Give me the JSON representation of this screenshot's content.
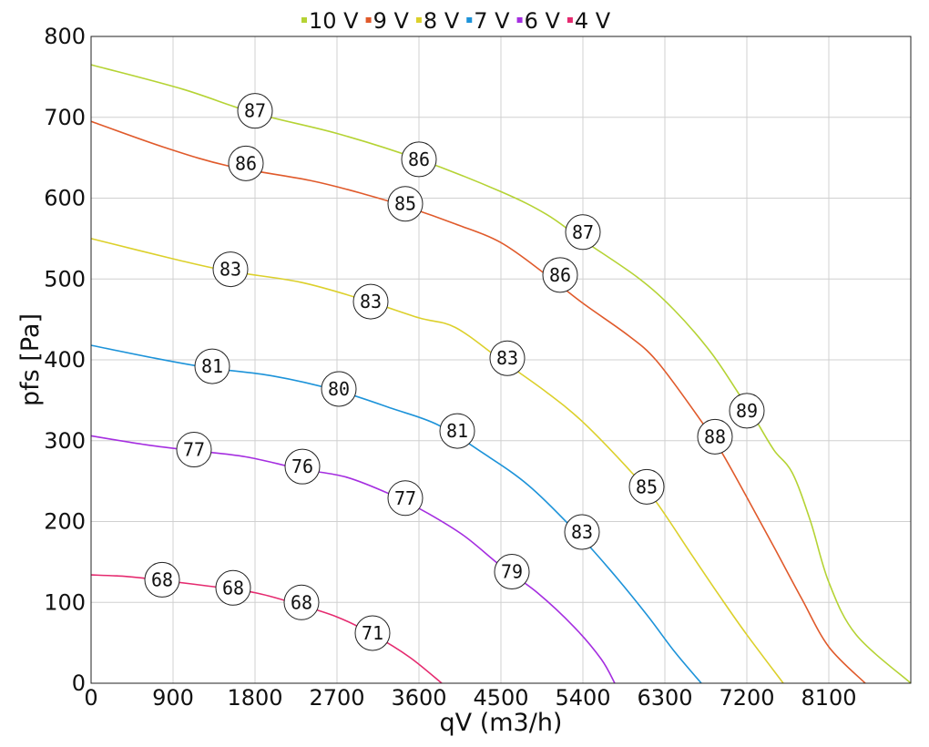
{
  "chart_data": {
    "type": "line",
    "xlabel": "qV (m3/h)",
    "ylabel": "pfs [Pa]",
    "xlim": [
      0,
      9000
    ],
    "ylim": [
      0,
      800
    ],
    "xticks": [
      0,
      900,
      1800,
      2700,
      3600,
      4500,
      5400,
      6300,
      7200,
      8100
    ],
    "yticks": [
      0,
      100,
      200,
      300,
      400,
      500,
      600,
      700,
      800
    ],
    "grid": true,
    "legend_position": "top-center",
    "series": [
      {
        "name": "10 V",
        "color": "#b5d334",
        "points": [
          [
            0,
            765
          ],
          [
            1000,
            735
          ],
          [
            1800,
            705
          ],
          [
            2700,
            680
          ],
          [
            3600,
            648
          ],
          [
            4500,
            608
          ],
          [
            5000,
            580
          ],
          [
            5400,
            548
          ],
          [
            6000,
            502
          ],
          [
            6400,
            462
          ],
          [
            6800,
            410
          ],
          [
            7100,
            360
          ],
          [
            7300,
            325
          ],
          [
            7500,
            288
          ],
          [
            7700,
            260
          ],
          [
            7900,
            200
          ],
          [
            8100,
            125
          ],
          [
            8400,
            60
          ],
          [
            9000,
            0
          ]
        ]
      },
      {
        "name": "9 V",
        "color": "#e05a2b",
        "points": [
          [
            0,
            695
          ],
          [
            800,
            663
          ],
          [
            1500,
            640
          ],
          [
            2400,
            622
          ],
          [
            3000,
            605
          ],
          [
            3500,
            588
          ],
          [
            4000,
            568
          ],
          [
            4500,
            545
          ],
          [
            5000,
            505
          ],
          [
            5400,
            470
          ],
          [
            5900,
            430
          ],
          [
            6200,
            400
          ],
          [
            6600,
            340
          ],
          [
            6900,
            290
          ],
          [
            7200,
            230
          ],
          [
            7500,
            168
          ],
          [
            7800,
            105
          ],
          [
            8100,
            45
          ],
          [
            8500,
            0
          ]
        ]
      },
      {
        "name": "8 V",
        "color": "#dcd02b",
        "points": [
          [
            0,
            550
          ],
          [
            900,
            525
          ],
          [
            1500,
            510
          ],
          [
            2300,
            496
          ],
          [
            3000,
            474
          ],
          [
            3600,
            452
          ],
          [
            4000,
            440
          ],
          [
            4500,
            400
          ],
          [
            5000,
            360
          ],
          [
            5400,
            323
          ],
          [
            5900,
            265
          ],
          [
            6200,
            225
          ],
          [
            6600,
            158
          ],
          [
            6900,
            108
          ],
          [
            7200,
            60
          ],
          [
            7600,
            0
          ]
        ]
      },
      {
        "name": "7 V",
        "color": "#1d93d9",
        "points": [
          [
            0,
            418
          ],
          [
            700,
            402
          ],
          [
            1300,
            390
          ],
          [
            2000,
            380
          ],
          [
            2700,
            362
          ],
          [
            3300,
            340
          ],
          [
            3800,
            320
          ],
          [
            4300,
            285
          ],
          [
            4800,
            245
          ],
          [
            5300,
            190
          ],
          [
            5700,
            140
          ],
          [
            6100,
            85
          ],
          [
            6400,
            40
          ],
          [
            6700,
            0
          ]
        ]
      },
      {
        "name": "6 V",
        "color": "#a52ee0",
        "points": [
          [
            0,
            306
          ],
          [
            600,
            295
          ],
          [
            1100,
            288
          ],
          [
            1700,
            280
          ],
          [
            2300,
            265
          ],
          [
            2800,
            255
          ],
          [
            3300,
            233
          ],
          [
            3700,
            210
          ],
          [
            4100,
            182
          ],
          [
            4500,
            145
          ],
          [
            4900,
            112
          ],
          [
            5300,
            70
          ],
          [
            5600,
            30
          ],
          [
            5750,
            0
          ]
        ]
      },
      {
        "name": "4 V",
        "color": "#e52a6f",
        "points": [
          [
            0,
            134
          ],
          [
            400,
            132
          ],
          [
            800,
            127
          ],
          [
            1300,
            120
          ],
          [
            1800,
            112
          ],
          [
            2200,
            100
          ],
          [
            2700,
            82
          ],
          [
            3100,
            60
          ],
          [
            3500,
            32
          ],
          [
            3850,
            0
          ]
        ]
      }
    ],
    "annotations": [
      {
        "series": "10 V",
        "x": 1800,
        "y": 708,
        "label": "87"
      },
      {
        "series": "10 V",
        "x": 3600,
        "y": 648,
        "label": "86"
      },
      {
        "series": "10 V",
        "x": 5400,
        "y": 558,
        "label": "87"
      },
      {
        "series": "10 V",
        "x": 7200,
        "y": 337,
        "label": "89"
      },
      {
        "series": "9 V",
        "x": 1700,
        "y": 643,
        "label": "86"
      },
      {
        "series": "9 V",
        "x": 3450,
        "y": 593,
        "label": "85"
      },
      {
        "series": "9 V",
        "x": 5150,
        "y": 505,
        "label": "86"
      },
      {
        "series": "9 V",
        "x": 6850,
        "y": 305,
        "label": "88"
      },
      {
        "series": "8 V",
        "x": 1530,
        "y": 512,
        "label": "83"
      },
      {
        "series": "8 V",
        "x": 3070,
        "y": 472,
        "label": "83"
      },
      {
        "series": "8 V",
        "x": 4570,
        "y": 402,
        "label": "83"
      },
      {
        "series": "8 V",
        "x": 6100,
        "y": 243,
        "label": "85"
      },
      {
        "series": "7 V",
        "x": 1330,
        "y": 392,
        "label": "81"
      },
      {
        "series": "7 V",
        "x": 2720,
        "y": 364,
        "label": "80"
      },
      {
        "series": "7 V",
        "x": 4020,
        "y": 312,
        "label": "81"
      },
      {
        "series": "7 V",
        "x": 5390,
        "y": 187,
        "label": "83"
      },
      {
        "series": "6 V",
        "x": 1130,
        "y": 289,
        "label": "77"
      },
      {
        "series": "6 V",
        "x": 2320,
        "y": 268,
        "label": "76"
      },
      {
        "series": "6 V",
        "x": 3450,
        "y": 229,
        "label": "77"
      },
      {
        "series": "6 V",
        "x": 4620,
        "y": 138,
        "label": "79"
      },
      {
        "series": "4 V",
        "x": 780,
        "y": 128,
        "label": "68"
      },
      {
        "series": "4 V",
        "x": 1560,
        "y": 118,
        "label": "68"
      },
      {
        "series": "4 V",
        "x": 2310,
        "y": 100,
        "label": "68"
      },
      {
        "series": "4 V",
        "x": 3090,
        "y": 62,
        "label": "71"
      }
    ]
  }
}
